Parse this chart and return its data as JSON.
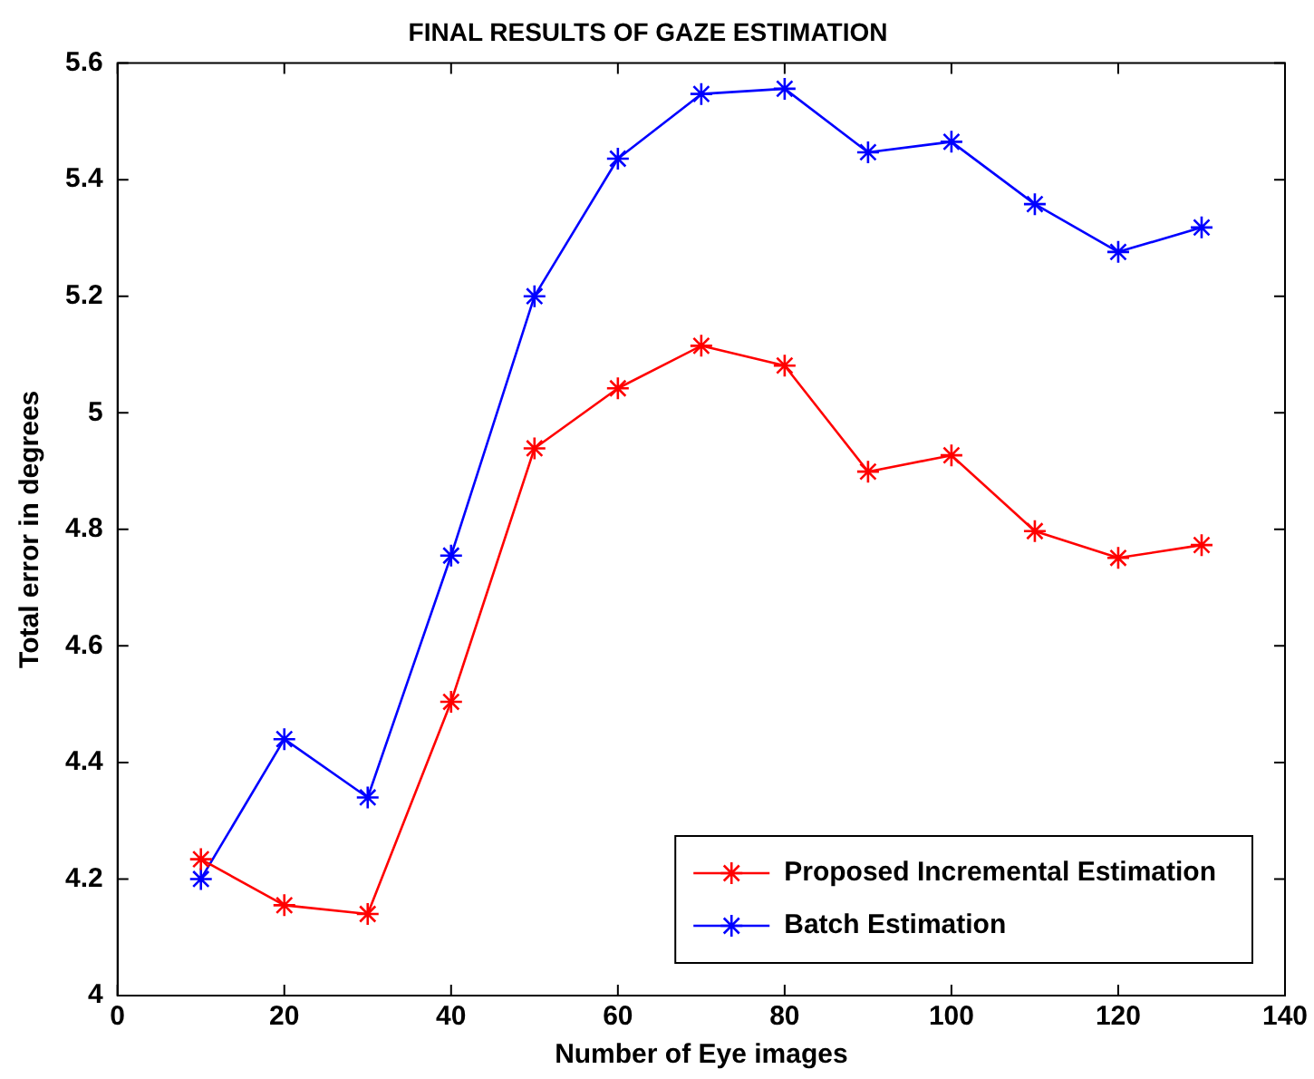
{
  "chart_data": {
    "type": "line",
    "title": "FINAL RESULTS OF GAZE ESTIMATION",
    "xlabel": "Number of Eye images",
    "ylabel": "Total error in degrees",
    "x": [
      10,
      20,
      30,
      40,
      50,
      60,
      70,
      80,
      90,
      100,
      110,
      120,
      130
    ],
    "series": [
      {
        "name": "Proposed Incremental Estimation",
        "color": "#ff0000",
        "values": [
          4.234,
          4.155,
          4.14,
          4.504,
          4.939,
          5.042,
          5.115,
          5.081,
          4.899,
          4.927,
          4.797,
          4.751,
          4.773
        ]
      },
      {
        "name": "Batch Estimation",
        "color": "#0000ff",
        "values": [
          4.2,
          4.44,
          4.34,
          4.755,
          5.2,
          5.436,
          5.547,
          5.556,
          5.447,
          5.465,
          5.358,
          5.276,
          5.318
        ]
      }
    ],
    "xlim": [
      0,
      140
    ],
    "xticks": [
      0,
      20,
      40,
      60,
      80,
      100,
      120,
      140
    ],
    "ylim": [
      4,
      5.6
    ],
    "yticks": [
      4,
      4.2,
      4.4,
      4.6,
      4.8,
      5,
      5.2,
      5.4,
      5.6
    ],
    "grid": false,
    "legend": "bottom right",
    "marker": "cross",
    "line_style": "solid"
  }
}
